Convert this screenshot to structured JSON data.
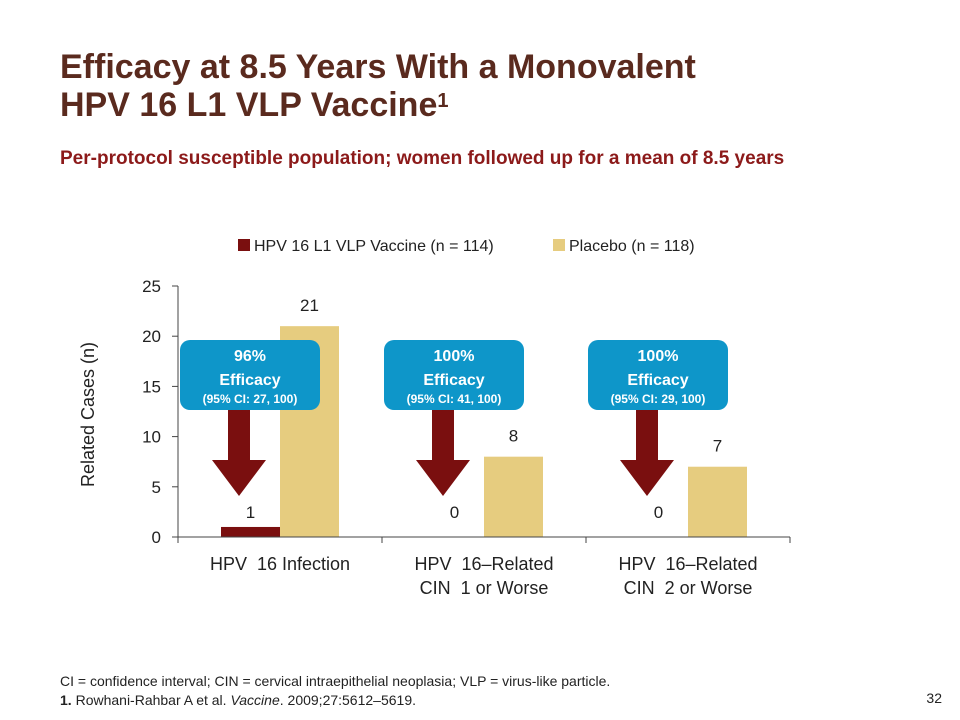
{
  "slide": {
    "title_line1": "Efficacy at 8.5 Years With a Monovalent",
    "title_line2": "HPV 16 L1 VLP Vaccine",
    "title_sup": "1",
    "subtitle": "Per-protocol susceptible population; women followed up for a mean of 8.5 years",
    "footnote_line1": "CI = confidence interval; CIN = cervical intraepithelial neoplasia; VLP = virus-like particle.",
    "ref_number": "1.",
    "ref_authors": "Rowhani-Rahbar A et al.",
    "ref_journal": "Vaccine",
    "ref_rest": ". 2009;27:5612–5619.",
    "page_number": "32"
  },
  "colors": {
    "vaccine": "#7a0f0f",
    "placebo": "#e6cc7f",
    "callout": "#0e96c9",
    "arrow": "#7a0f0f",
    "axis": "#444444"
  },
  "chart_data": {
    "type": "bar",
    "categories": [
      [
        "HPV  16 Infection"
      ],
      [
        "HPV  16–Related",
        "CIN  1 or Worse"
      ],
      [
        "HPV  16–Related",
        "CIN  2 or Worse"
      ]
    ],
    "series": [
      {
        "name": "HPV 16 L1 VLP Vaccine (n = 114)",
        "values": [
          1,
          0,
          0
        ]
      },
      {
        "name": "Placebo (n = 118)",
        "values": [
          21,
          8,
          7
        ]
      }
    ],
    "ylabel": "Related Cases (n)",
    "xlabel": "",
    "ylim": [
      0,
      25
    ],
    "yticks": [
      0,
      5,
      10,
      15,
      20,
      25
    ],
    "legend": "top",
    "grid": false,
    "annotations": [
      {
        "line1": "96%",
        "line2": "Efficacy",
        "line3": "(95% CI: 27, 100)"
      },
      {
        "line1": "100%",
        "line2": "Efficacy",
        "line3": "(95% CI: 41, 100)"
      },
      {
        "line1": "100%",
        "line2": "Efficacy",
        "line3": "(95% CI: 29, 100)"
      }
    ]
  }
}
